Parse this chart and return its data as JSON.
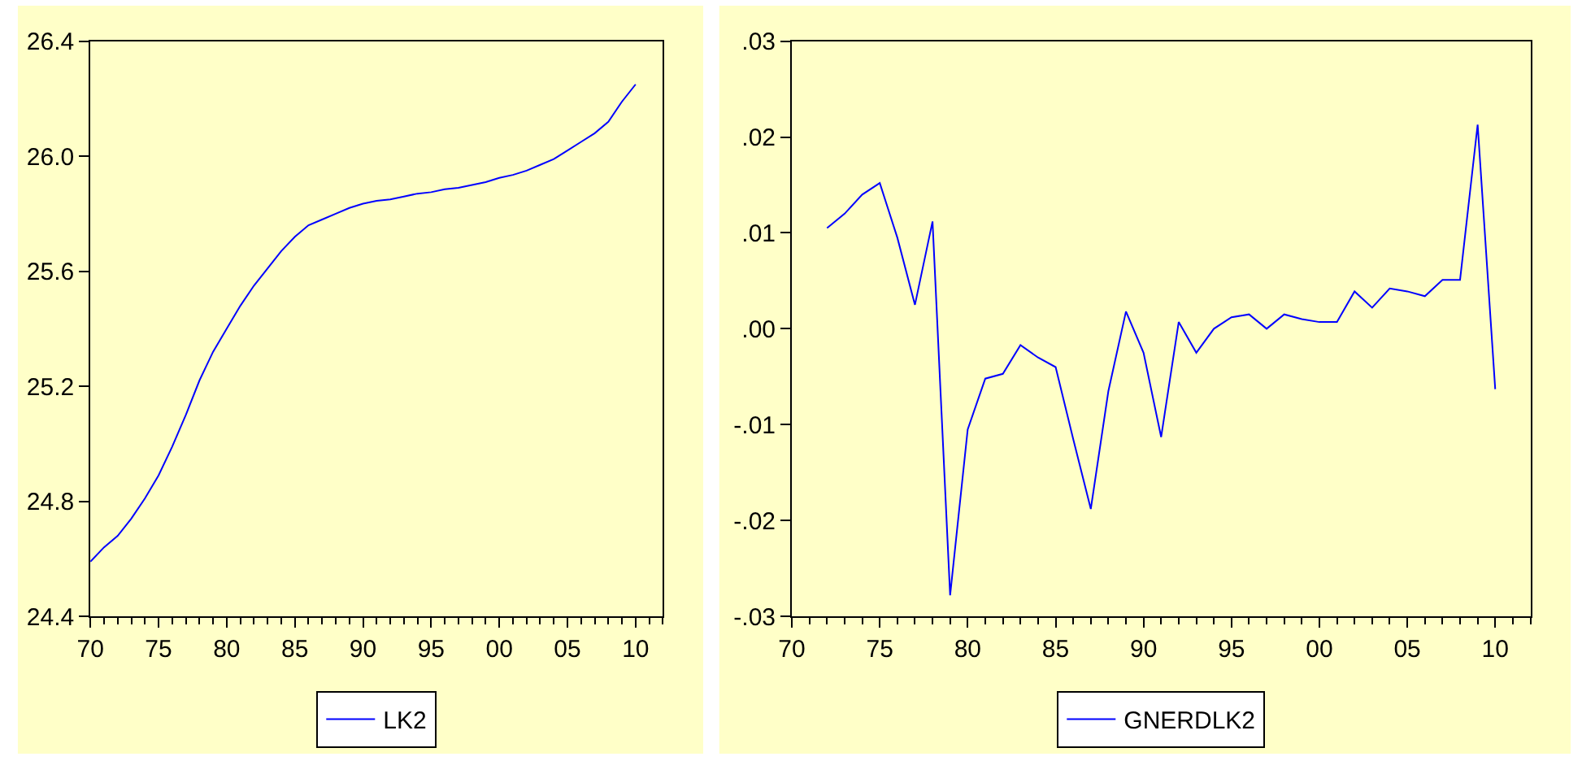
{
  "chart_data": [
    {
      "type": "line",
      "x": [
        1970,
        1971,
        1972,
        1973,
        1974,
        1975,
        1976,
        1977,
        1978,
        1979,
        1980,
        1981,
        1982,
        1983,
        1984,
        1985,
        1986,
        1987,
        1988,
        1989,
        1990,
        1991,
        1992,
        1993,
        1994,
        1995,
        1996,
        1997,
        1998,
        1999,
        2000,
        2001,
        2002,
        2003,
        2004,
        2005,
        2006,
        2007,
        2008,
        2009,
        2010
      ],
      "series": [
        {
          "name": "LK2",
          "color": "#0000ff",
          "values": [
            24.59,
            24.64,
            24.68,
            24.74,
            24.81,
            24.89,
            24.99,
            25.1,
            25.22,
            25.32,
            25.4,
            25.48,
            25.55,
            25.61,
            25.67,
            25.72,
            25.76,
            25.78,
            25.8,
            25.82,
            25.835,
            25.845,
            25.85,
            25.86,
            25.87,
            25.875,
            25.885,
            25.89,
            25.9,
            25.91,
            25.925,
            25.935,
            25.95,
            25.97,
            25.99,
            26.02,
            26.05,
            26.08,
            26.12,
            26.19,
            26.25
          ]
        }
      ],
      "xlim": [
        1970,
        2012
      ],
      "xticks": [
        {
          "value": 1970,
          "label": "70"
        },
        {
          "value": 1975,
          "label": "75"
        },
        {
          "value": 1980,
          "label": "80"
        },
        {
          "value": 1985,
          "label": "85"
        },
        {
          "value": 1990,
          "label": "90"
        },
        {
          "value": 1995,
          "label": "95"
        },
        {
          "value": 2000,
          "label": "00"
        },
        {
          "value": 2005,
          "label": "05"
        },
        {
          "value": 2010,
          "label": "10"
        }
      ],
      "ylim": [
        24.4,
        26.4
      ],
      "yticks": [
        {
          "value": 24.4,
          "label": "24.4"
        },
        {
          "value": 24.8,
          "label": "24.8"
        },
        {
          "value": 25.2,
          "label": "25.2"
        },
        {
          "value": 25.6,
          "label": "25.6"
        },
        {
          "value": 26.0,
          "label": "26.0"
        },
        {
          "value": 26.4,
          "label": "26.4"
        }
      ],
      "grid": false,
      "legend": "bottom",
      "marker": "none",
      "line_style": "solid"
    },
    {
      "type": "line",
      "x": [
        1972,
        1973,
        1974,
        1975,
        1976,
        1977,
        1978,
        1979,
        1980,
        1981,
        1982,
        1983,
        1984,
        1985,
        1986,
        1987,
        1988,
        1989,
        1990,
        1991,
        1992,
        1993,
        1994,
        1995,
        1996,
        1997,
        1998,
        1999,
        2000,
        2001,
        2002,
        2003,
        2004,
        2005,
        2006,
        2007,
        2008,
        2009,
        2010
      ],
      "series": [
        {
          "name": "GNERDLK2",
          "color": "#0000ff",
          "values": [
            0.0105,
            0.012,
            0.014,
            0.0152,
            0.0095,
            0.0025,
            0.0112,
            -0.0278,
            -0.0105,
            -0.0052,
            -0.0047,
            -0.0017,
            -0.003,
            -0.004,
            -0.0115,
            -0.0188,
            -0.0065,
            0.0018,
            -0.0025,
            -0.0113,
            0.0007,
            -0.0025,
            0.0,
            0.0012,
            0.0015,
            0.0,
            0.0015,
            0.001,
            0.0007,
            0.0007,
            0.0039,
            0.0022,
            0.0042,
            0.0039,
            0.0034,
            0.0051,
            0.0051,
            0.0213,
            -0.0063
          ]
        }
      ],
      "xlim": [
        1970,
        2012
      ],
      "xticks": [
        {
          "value": 1970,
          "label": "70"
        },
        {
          "value": 1975,
          "label": "75"
        },
        {
          "value": 1980,
          "label": "80"
        },
        {
          "value": 1985,
          "label": "85"
        },
        {
          "value": 1990,
          "label": "90"
        },
        {
          "value": 1995,
          "label": "95"
        },
        {
          "value": 2000,
          "label": "00"
        },
        {
          "value": 2005,
          "label": "05"
        },
        {
          "value": 2010,
          "label": "10"
        }
      ],
      "ylim": [
        -0.03,
        0.03
      ],
      "yticks": [
        {
          "value": -0.03,
          "label": "-.03"
        },
        {
          "value": -0.02,
          "label": "-.02"
        },
        {
          "value": -0.01,
          "label": "-.01"
        },
        {
          "value": 0.0,
          "label": ".00"
        },
        {
          "value": 0.01,
          "label": ".01"
        },
        {
          "value": 0.02,
          "label": ".02"
        },
        {
          "value": 0.03,
          "label": ".03"
        }
      ],
      "grid": false,
      "legend": "bottom",
      "marker": "none",
      "line_style": "solid"
    }
  ]
}
